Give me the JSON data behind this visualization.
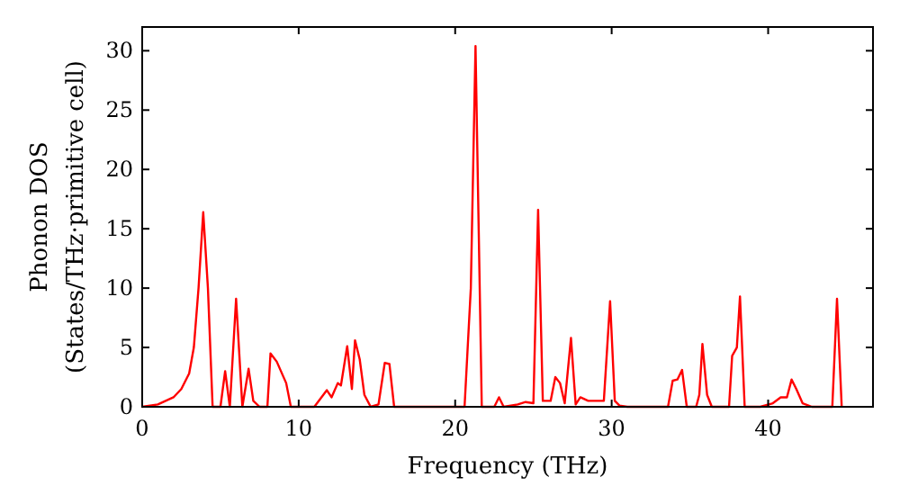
{
  "chart_data": {
    "type": "line",
    "xlabel": "Frequency (THz)",
    "ylabel": "Phonon DOS\n(States/THz·primitive cell)",
    "xlim": [
      0,
      46.7
    ],
    "ylim": [
      0,
      32
    ],
    "xticks": [
      0,
      10,
      20,
      30,
      40
    ],
    "yticks": [
      0,
      5,
      10,
      15,
      20,
      25,
      30
    ],
    "grid": false,
    "marker": "none",
    "line_style": "solid",
    "series": [
      {
        "color": "#ff0000",
        "x": [
          0,
          1,
          2,
          2.5,
          3,
          3.3,
          3.6,
          3.9,
          4.2,
          4.5,
          5.0,
          5.3,
          5.6,
          6.0,
          6.4,
          6.8,
          7.1,
          7.5,
          8.0,
          8.2,
          8.6,
          9.2,
          9.5,
          11,
          11.8,
          12.1,
          12.5,
          12.7,
          13.1,
          13.4,
          13.6,
          13.9,
          14.2,
          14.6,
          15.1,
          15.5,
          15.8,
          16.1,
          20.6,
          21.0,
          21.3,
          21.7,
          22.5,
          22.8,
          23.1,
          24,
          24.5,
          25,
          25.3,
          25.6,
          26.1,
          26.4,
          26.7,
          27.0,
          27.4,
          27.7,
          28.0,
          28.5,
          29.5,
          29.9,
          30.2,
          30.5,
          31,
          33.6,
          33.9,
          34.2,
          34.5,
          34.8,
          35.4,
          35.6,
          35.8,
          36.1,
          36.4,
          37.5,
          37.7,
          38.0,
          38.2,
          38.5,
          39.5,
          40.3,
          40.8,
          41.2,
          41.5,
          41.8,
          42.2,
          42.8,
          44.1,
          44.4,
          44.7
        ],
        "values": [
          0,
          0.2,
          0.8,
          1.5,
          2.8,
          5,
          10,
          16.4,
          10,
          0,
          0,
          3.0,
          0,
          9.1,
          0,
          3.2,
          0.5,
          0,
          0,
          4.5,
          3.8,
          2.0,
          0,
          0,
          1.4,
          0.8,
          2.0,
          1.8,
          5.1,
          1.5,
          5.6,
          4.0,
          1.0,
          0,
          0.2,
          3.7,
          3.6,
          0,
          0,
          10,
          30.4,
          0,
          0,
          0.8,
          0,
          0.2,
          0.4,
          0.3,
          16.6,
          0.5,
          0.5,
          2.5,
          2.0,
          0.3,
          5.8,
          0.2,
          0.8,
          0.5,
          0.5,
          8.9,
          0.5,
          0.1,
          0,
          0,
          2.2,
          2.3,
          3.1,
          0,
          0,
          1.0,
          5.3,
          1.0,
          0,
          0,
          4.3,
          5.0,
          9.3,
          0,
          0,
          0.3,
          0.8,
          0.8,
          2.3,
          1.5,
          0.3,
          0,
          0,
          9.1,
          0
        ]
      }
    ]
  }
}
